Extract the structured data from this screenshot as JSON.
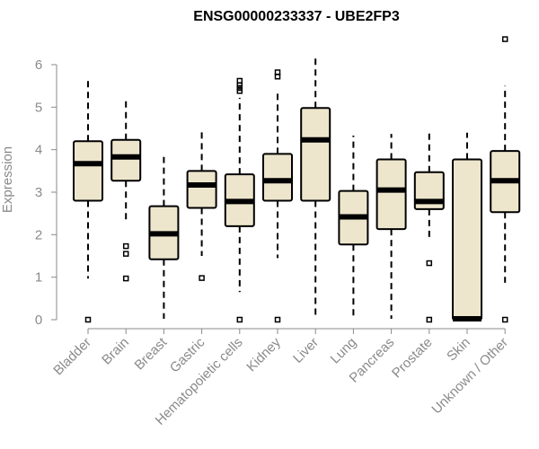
{
  "chart_data": {
    "type": "boxplot",
    "title": "ENSG00000233337 - UBE2FP3",
    "ylabel": "Expression",
    "ylim": [
      0,
      6.6
    ],
    "yticks": [
      0,
      1,
      2,
      3,
      4,
      5,
      6
    ],
    "grid": false,
    "box_fill": "#ede6cd",
    "stroke_color": "#000000",
    "axis_color": "#8a8a8a",
    "categories": [
      "Bladder",
      "Brain",
      "Breast",
      "Gastric",
      "Hematopoietic cells",
      "Kidney",
      "Liver",
      "Lung",
      "Pancreas",
      "Prostate",
      "Skin",
      "Unknown / Other"
    ],
    "boxes": [
      {
        "min": 0.97,
        "q1": 2.8,
        "median": 3.67,
        "q3": 4.2,
        "max": 5.63,
        "outliers": [
          0
        ]
      },
      {
        "min": 2.27,
        "q1": 3.27,
        "median": 3.83,
        "q3": 4.23,
        "max": 5.2,
        "outliers": [
          1.73,
          1.55,
          0.97
        ]
      },
      {
        "min": 0.02,
        "q1": 1.42,
        "median": 2.02,
        "q3": 2.67,
        "max": 3.83,
        "outliers": []
      },
      {
        "min": 1.5,
        "q1": 2.63,
        "median": 3.17,
        "q3": 3.5,
        "max": 4.43,
        "outliers": [
          0.98
        ]
      },
      {
        "min": 0.65,
        "q1": 2.2,
        "median": 2.78,
        "q3": 3.42,
        "max": 5.22,
        "outliers": [
          5.62,
          5.52,
          5.45,
          5.38,
          0
        ]
      },
      {
        "min": 1.45,
        "q1": 2.8,
        "median": 3.27,
        "q3": 3.9,
        "max": 5.35,
        "outliers": [
          5.82,
          5.72,
          0
        ]
      },
      {
        "min": 0.02,
        "q1": 2.8,
        "median": 4.23,
        "q3": 4.98,
        "max": 6.15,
        "outliers": []
      },
      {
        "min": 0.02,
        "q1": 1.77,
        "median": 2.42,
        "q3": 3.03,
        "max": 4.33,
        "outliers": []
      },
      {
        "min": 0.02,
        "q1": 2.13,
        "median": 3.05,
        "q3": 3.77,
        "max": 4.37,
        "outliers": []
      },
      {
        "min": 1.92,
        "q1": 2.6,
        "median": 2.78,
        "q3": 3.47,
        "max": 4.43,
        "outliers": [
          1.33,
          0
        ]
      },
      {
        "min": 0.0,
        "q1": 0.0,
        "median": 0.02,
        "q3": 3.77,
        "max": 4.4,
        "outliers": []
      },
      {
        "min": 0.87,
        "q1": 2.53,
        "median": 3.27,
        "q3": 3.97,
        "max": 5.5,
        "outliers": [
          6.6,
          0
        ]
      }
    ]
  }
}
